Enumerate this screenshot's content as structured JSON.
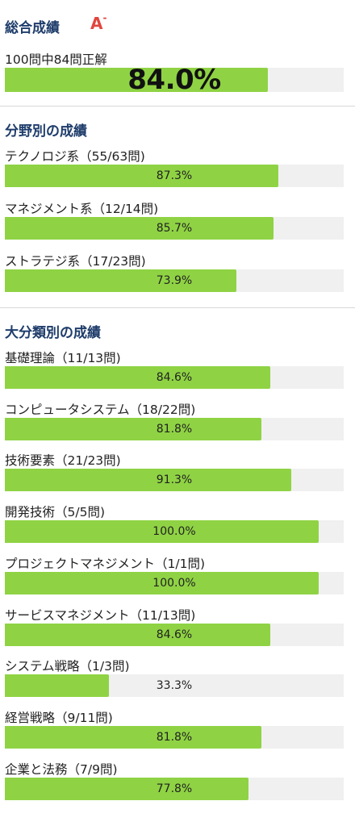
{
  "summary": {
    "title": "総合成績",
    "grade": "A",
    "grade_suffix": "-",
    "subtitle": "100問中84問正解",
    "percent_label": "84.0%",
    "percent": 84.0
  },
  "by_field": {
    "title": "分野別の成績",
    "items": [
      {
        "label": "テクノロジ系（55/63問)",
        "percent_label": "87.3%",
        "percent": 87.3
      },
      {
        "label": "マネジメント系（12/14問)",
        "percent_label": "85.7%",
        "percent": 85.7
      },
      {
        "label": "ストラテジ系（17/23問)",
        "percent_label": "73.9%",
        "percent": 73.9
      }
    ]
  },
  "by_category": {
    "title": "大分類別の成績",
    "items": [
      {
        "label": "基礎理論（11/13問)",
        "percent_label": "84.6%",
        "percent": 84.6
      },
      {
        "label": "コンピュータシステム（18/22問)",
        "percent_label": "81.8%",
        "percent": 81.8
      },
      {
        "label": "技術要素（21/23問)",
        "percent_label": "91.3%",
        "percent": 91.3
      },
      {
        "label": "開発技術（5/5問)",
        "percent_label": "100.0%",
        "percent": 100.0
      },
      {
        "label": "プロジェクトマネジメント（1/1問)",
        "percent_label": "100.0%",
        "percent": 100.0
      },
      {
        "label": "サービスマネジメント（11/13問)",
        "percent_label": "84.6%",
        "percent": 84.6
      },
      {
        "label": "システム戦略（1/3問)",
        "percent_label": "33.3%",
        "percent": 33.3
      },
      {
        "label": "経営戦略（9/11問)",
        "percent_label": "81.8%",
        "percent": 81.8
      },
      {
        "label": "企業と法務（7/9問)",
        "percent_label": "77.8%",
        "percent": 77.8
      }
    ]
  },
  "colors": {
    "bar_fill": "#8fd344",
    "bar_track": "#f0f0f0",
    "heading": "#1f3d6b",
    "grade": "#e0473f"
  }
}
